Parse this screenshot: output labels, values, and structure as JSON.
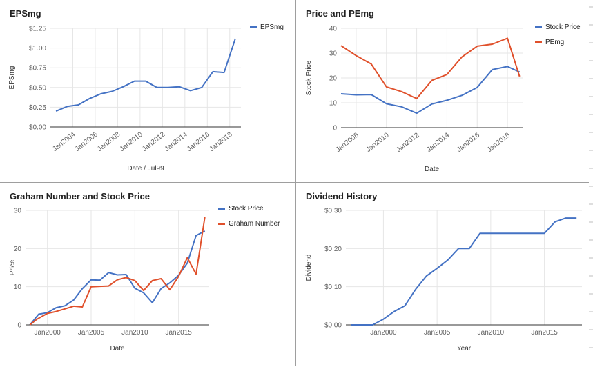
{
  "colors": {
    "blue": "#4472c4",
    "red": "#e0502b",
    "grid": "#e6e6e6",
    "axis": "#333333",
    "text": "#616161"
  },
  "chart_data": [
    {
      "type": "line",
      "title": "EPSmg",
      "xlabel": "Date / Jul99",
      "ylabel": "EPSmg",
      "xlim": [
        2002.0,
        2019.0
      ],
      "ylim": [
        0,
        1.25
      ],
      "x_ticks": [
        2004,
        2006,
        2008,
        2010,
        2012,
        2014,
        2016,
        2018
      ],
      "x_tick_labels": [
        "Jan2004",
        "Jan2006",
        "Jan2008",
        "Jan2010",
        "Jan2012",
        "Jan2014",
        "Jan2016",
        "Jan2018"
      ],
      "y_ticks": [
        0,
        0.25,
        0.5,
        0.75,
        1.0,
        1.25
      ],
      "y_tick_labels": [
        "$0.00",
        "$0.25",
        "$0.50",
        "$0.75",
        "$1.00",
        "$1.25"
      ],
      "legend_position": "right",
      "series": [
        {
          "name": "EPSmg",
          "color": "#4472c4",
          "x": [
            2002.5,
            2003.5,
            2004.5,
            2005.5,
            2006.5,
            2007.5,
            2008.5,
            2009.5,
            2010.5,
            2011.5,
            2012.5,
            2013.5,
            2014.5,
            2015.5,
            2016.5,
            2017.5,
            2018.5
          ],
          "y": [
            0.2,
            0.26,
            0.28,
            0.36,
            0.42,
            0.45,
            0.51,
            0.58,
            0.58,
            0.5,
            0.5,
            0.51,
            0.46,
            0.5,
            0.7,
            0.69,
            1.12
          ]
        }
      ]
    },
    {
      "type": "line",
      "title": "Price and PEmg",
      "xlabel": "Date",
      "ylabel": "Stock Price",
      "xlim": [
        2007.0,
        2019.0
      ],
      "ylim": [
        0,
        40
      ],
      "x_ticks": [
        2008,
        2010,
        2012,
        2014,
        2016,
        2018
      ],
      "x_tick_labels": [
        "Jan2008",
        "Jan2010",
        "Jan2012",
        "Jan2014",
        "Jan2016",
        "Jan2018"
      ],
      "y_ticks": [
        0,
        10,
        20,
        30,
        40
      ],
      "y_tick_labels": [
        "0",
        "10",
        "20",
        "30",
        "40"
      ],
      "legend_position": "right",
      "series": [
        {
          "name": "Stock Price",
          "color": "#4472c4",
          "x": [
            2007.0,
            2008.0,
            2009.0,
            2010.0,
            2011.0,
            2012.0,
            2013.0,
            2014.0,
            2015.0,
            2016.0,
            2017.0,
            2018.0,
            2018.8
          ],
          "y": [
            13.6,
            13.2,
            13.3,
            9.6,
            8.4,
            5.8,
            9.5,
            11.0,
            13.0,
            16.2,
            23.4,
            24.6,
            22.4
          ]
        },
        {
          "name": "PEmg",
          "color": "#e0502b",
          "x": [
            2007.0,
            2008.0,
            2009.0,
            2010.0,
            2011.0,
            2012.0,
            2013.0,
            2014.0,
            2015.0,
            2016.0,
            2017.0,
            2018.0,
            2018.8
          ],
          "y": [
            33.0,
            29.0,
            25.6,
            16.4,
            14.5,
            11.7,
            19.0,
            21.4,
            28.5,
            32.8,
            33.6,
            36.0,
            20.6
          ]
        }
      ]
    },
    {
      "type": "line",
      "title": "Graham Number and Stock Price",
      "xlabel": "Date",
      "ylabel": "Price",
      "xlim": [
        1997.5,
        2018.5
      ],
      "ylim": [
        0,
        30
      ],
      "x_ticks": [
        2000,
        2005,
        2010,
        2015
      ],
      "x_tick_labels": [
        "Jan2000",
        "Jan2005",
        "Jan2010",
        "Jan2015"
      ],
      "y_ticks": [
        0,
        10,
        20,
        30
      ],
      "y_tick_labels": [
        "0",
        "10",
        "20",
        "30"
      ],
      "legend_position": "right",
      "series": [
        {
          "name": "Stock Price",
          "color": "#4472c4",
          "x": [
            1998.0,
            1999.0,
            2000.0,
            2001.0,
            2002.0,
            2003.0,
            2004.0,
            2005.0,
            2006.0,
            2007.0,
            2008.0,
            2009.0,
            2010.0,
            2011.0,
            2012.0,
            2013.0,
            2014.0,
            2015.0,
            2016.0,
            2017.0,
            2018.0
          ],
          "y": [
            0.0,
            2.8,
            3.2,
            4.5,
            5.0,
            6.5,
            9.5,
            11.8,
            11.7,
            13.7,
            13.1,
            13.2,
            9.6,
            8.4,
            5.8,
            9.5,
            11.0,
            13.0,
            16.2,
            23.4,
            24.6
          ]
        },
        {
          "name": "Graham Number",
          "color": "#e0502b",
          "x": [
            1998.0,
            1998.8,
            2000.0,
            2001.0,
            2002.0,
            2003.0,
            2004.0,
            2005.0,
            2006.0,
            2007.0,
            2008.0,
            2009.0,
            2010.0,
            2011.0,
            2012.0,
            2013.0,
            2014.0,
            2015.0,
            2016.0,
            2017.0,
            2018.0
          ],
          "y": [
            0.0,
            1.5,
            3.0,
            3.5,
            4.2,
            4.9,
            4.7,
            10.0,
            10.1,
            10.2,
            11.8,
            12.4,
            11.6,
            9.0,
            11.6,
            12.1,
            9.2,
            12.7,
            17.6,
            13.3,
            28.2
          ]
        }
      ]
    },
    {
      "type": "line",
      "title": "Dividend History",
      "xlabel": "Year",
      "ylabel": "Dividend",
      "xlim": [
        1996.5,
        2018.5
      ],
      "ylim": [
        0,
        0.3
      ],
      "x_ticks": [
        2000,
        2005,
        2010,
        2015
      ],
      "x_tick_labels": [
        "Jan2000",
        "Jan2005",
        "Jan2010",
        "Jan2015"
      ],
      "y_ticks": [
        0,
        0.1,
        0.2,
        0.3
      ],
      "y_tick_labels": [
        "$0.00",
        "$0.10",
        "$0.20",
        "$0.30"
      ],
      "series": [
        {
          "name": "Dividend",
          "color": "#4472c4",
          "x": [
            1997.0,
            1998.0,
            1999.0,
            2000.0,
            2001.0,
            2002.0,
            2003.0,
            2004.0,
            2005.0,
            2006.0,
            2007.0,
            2008.0,
            2009.0,
            2010.0,
            2011.0,
            2012.0,
            2013.0,
            2014.0,
            2015.0,
            2016.0,
            2017.0,
            2018.0
          ],
          "y": [
            0.0,
            0.0,
            0.0,
            0.015,
            0.035,
            0.05,
            0.093,
            0.128,
            0.148,
            0.17,
            0.2,
            0.2,
            0.24,
            0.24,
            0.24,
            0.24,
            0.24,
            0.24,
            0.24,
            0.27,
            0.28,
            0.28
          ]
        }
      ]
    }
  ]
}
